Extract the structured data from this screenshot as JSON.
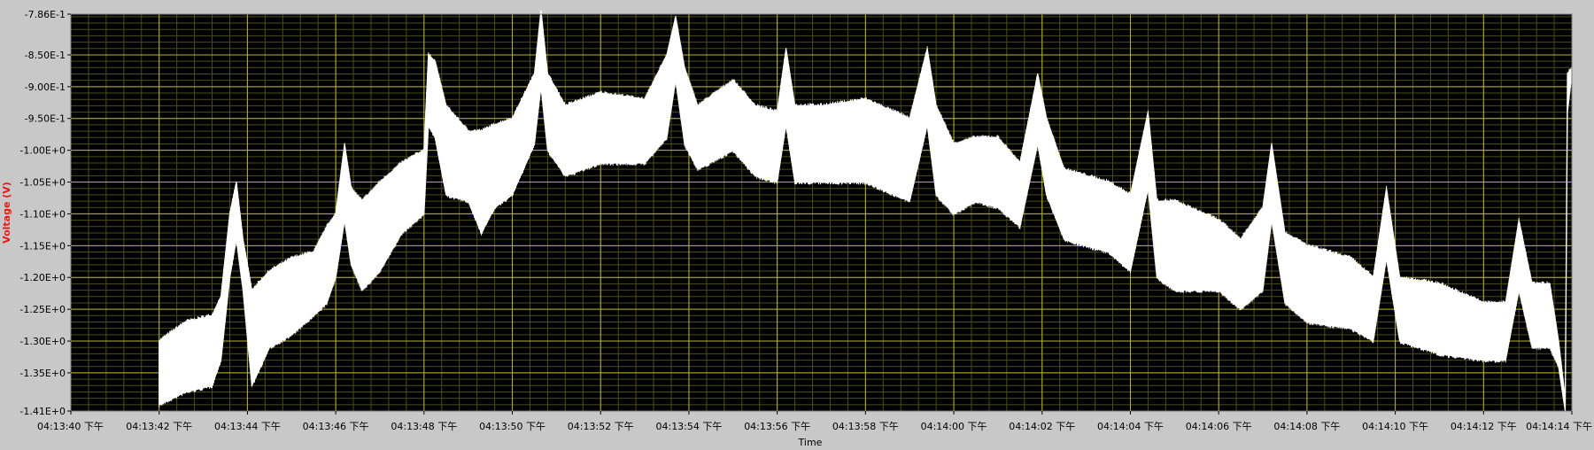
{
  "chart_data": {
    "type": "line",
    "title": "",
    "xlabel": "Time",
    "ylabel": "Voltage (V)",
    "x_range": [
      "04:13:40 下午",
      "04:14:14 下午"
    ],
    "ylim": [
      -1.41,
      -0.786
    ],
    "grid": true,
    "y_ticks": [
      {
        "value": -0.786,
        "label": "-7.86E-1"
      },
      {
        "value": -0.85,
        "label": "-8.50E-1"
      },
      {
        "value": -0.9,
        "label": "-9.00E-1"
      },
      {
        "value": -0.95,
        "label": "-9.50E-1"
      },
      {
        "value": -1.0,
        "label": "-1.00E+0"
      },
      {
        "value": -1.05,
        "label": "-1.05E+0"
      },
      {
        "value": -1.1,
        "label": "-1.10E+0"
      },
      {
        "value": -1.15,
        "label": "-1.15E+0"
      },
      {
        "value": -1.2,
        "label": "-1.20E+0"
      },
      {
        "value": -1.25,
        "label": "-1.25E+0"
      },
      {
        "value": -1.3,
        "label": "-1.30E+0"
      },
      {
        "value": -1.35,
        "label": "-1.35E+0"
      },
      {
        "value": -1.41,
        "label": "-1.41E+0"
      }
    ],
    "x_ticks": [
      {
        "value": 0,
        "label": "04:13:40 下午"
      },
      {
        "value": 2,
        "label": "04:13:42 下午"
      },
      {
        "value": 4,
        "label": "04:13:44 下午"
      },
      {
        "value": 6,
        "label": "04:13:46 下午"
      },
      {
        "value": 8,
        "label": "04:13:48 下午"
      },
      {
        "value": 10,
        "label": "04:13:50 下午"
      },
      {
        "value": 12,
        "label": "04:13:52 下午"
      },
      {
        "value": 14,
        "label": "04:13:54 下午"
      },
      {
        "value": 16,
        "label": "04:13:56 下午"
      },
      {
        "value": 18,
        "label": "04:13:58 下午"
      },
      {
        "value": 20,
        "label": "04:14:00 下午"
      },
      {
        "value": 22,
        "label": "04:14:02 下午"
      },
      {
        "value": 24,
        "label": "04:14:04 下午"
      },
      {
        "value": 26,
        "label": "04:14:06 下午"
      },
      {
        "value": 28,
        "label": "04:14:08 下午"
      },
      {
        "value": 30,
        "label": "04:14:10 下午"
      },
      {
        "value": 32,
        "label": "04:14:12 下午"
      },
      {
        "value": 34,
        "label": "04:14:14 下午"
      }
    ],
    "series": [
      {
        "upper_envelope": [
          [
            2.0,
            -1.3
          ],
          [
            2.6,
            -1.27
          ],
          [
            3.2,
            -1.26
          ],
          [
            3.4,
            -1.23
          ],
          [
            3.6,
            -1.1
          ],
          [
            3.75,
            -1.05
          ],
          [
            3.9,
            -1.14
          ],
          [
            4.1,
            -1.22
          ],
          [
            4.5,
            -1.19
          ],
          [
            5.0,
            -1.17
          ],
          [
            5.5,
            -1.16
          ],
          [
            5.8,
            -1.12
          ],
          [
            6.0,
            -1.1
          ],
          [
            6.2,
            -0.99
          ],
          [
            6.35,
            -1.06
          ],
          [
            6.6,
            -1.08
          ],
          [
            7.0,
            -1.05
          ],
          [
            7.5,
            -1.02
          ],
          [
            8.0,
            -1.0
          ],
          [
            8.1,
            -0.85
          ],
          [
            8.25,
            -0.86
          ],
          [
            8.5,
            -0.93
          ],
          [
            9.0,
            -0.97
          ],
          [
            9.3,
            -0.97
          ],
          [
            9.6,
            -0.96
          ],
          [
            10.0,
            -0.95
          ],
          [
            10.5,
            -0.88
          ],
          [
            10.65,
            -0.78
          ],
          [
            10.8,
            -0.88
          ],
          [
            11.2,
            -0.93
          ],
          [
            12.0,
            -0.91
          ],
          [
            13.0,
            -0.92
          ],
          [
            13.5,
            -0.85
          ],
          [
            13.7,
            -0.79
          ],
          [
            13.9,
            -0.87
          ],
          [
            14.2,
            -0.93
          ],
          [
            15.0,
            -0.89
          ],
          [
            15.5,
            -0.93
          ],
          [
            16.0,
            -0.94
          ],
          [
            16.2,
            -0.84
          ],
          [
            16.4,
            -0.93
          ],
          [
            17.0,
            -0.93
          ],
          [
            18.0,
            -0.92
          ],
          [
            19.0,
            -0.95
          ],
          [
            19.4,
            -0.84
          ],
          [
            19.6,
            -0.93
          ],
          [
            20.0,
            -0.99
          ],
          [
            20.5,
            -0.98
          ],
          [
            21.0,
            -0.98
          ],
          [
            21.5,
            -1.02
          ],
          [
            21.9,
            -0.88
          ],
          [
            22.1,
            -0.95
          ],
          [
            22.5,
            -1.03
          ],
          [
            23.5,
            -1.05
          ],
          [
            24.0,
            -1.07
          ],
          [
            24.4,
            -0.94
          ],
          [
            24.6,
            -1.08
          ],
          [
            25.0,
            -1.08
          ],
          [
            26.0,
            -1.11
          ],
          [
            26.5,
            -1.14
          ],
          [
            27.0,
            -1.09
          ],
          [
            27.2,
            -0.99
          ],
          [
            27.5,
            -1.13
          ],
          [
            28.0,
            -1.15
          ],
          [
            29.0,
            -1.17
          ],
          [
            29.5,
            -1.2
          ],
          [
            29.8,
            -1.06
          ],
          [
            30.1,
            -1.2
          ],
          [
            31.0,
            -1.21
          ],
          [
            32.0,
            -1.24
          ],
          [
            32.5,
            -1.24
          ],
          [
            32.8,
            -1.11
          ],
          [
            33.1,
            -1.21
          ],
          [
            33.5,
            -1.21
          ],
          [
            33.7,
            -1.3
          ],
          [
            33.85,
            -1.39
          ],
          [
            33.9,
            -0.88
          ],
          [
            34.0,
            -0.87
          ]
        ],
        "lower_envelope": [
          [
            2.0,
            -1.4
          ],
          [
            2.6,
            -1.38
          ],
          [
            3.2,
            -1.37
          ],
          [
            3.4,
            -1.33
          ],
          [
            3.6,
            -1.2
          ],
          [
            3.75,
            -1.14
          ],
          [
            3.9,
            -1.22
          ],
          [
            4.1,
            -1.37
          ],
          [
            4.5,
            -1.31
          ],
          [
            5.0,
            -1.29
          ],
          [
            5.5,
            -1.26
          ],
          [
            5.8,
            -1.24
          ],
          [
            6.0,
            -1.2
          ],
          [
            6.2,
            -1.11
          ],
          [
            6.35,
            -1.18
          ],
          [
            6.6,
            -1.22
          ],
          [
            7.0,
            -1.19
          ],
          [
            7.5,
            -1.13
          ],
          [
            8.0,
            -1.1
          ],
          [
            8.1,
            -0.96
          ],
          [
            8.25,
            -0.98
          ],
          [
            8.5,
            -1.07
          ],
          [
            9.0,
            -1.08
          ],
          [
            9.3,
            -1.13
          ],
          [
            9.6,
            -1.09
          ],
          [
            10.0,
            -1.07
          ],
          [
            10.5,
            -0.99
          ],
          [
            10.65,
            -0.9
          ],
          [
            10.8,
            -1.0
          ],
          [
            11.2,
            -1.04
          ],
          [
            12.0,
            -1.02
          ],
          [
            13.0,
            -1.02
          ],
          [
            13.5,
            -0.98
          ],
          [
            13.7,
            -0.89
          ],
          [
            13.9,
            -0.99
          ],
          [
            14.2,
            -1.03
          ],
          [
            15.0,
            -1.0
          ],
          [
            15.5,
            -1.04
          ],
          [
            16.0,
            -1.05
          ],
          [
            16.2,
            -0.96
          ],
          [
            16.4,
            -1.05
          ],
          [
            17.0,
            -1.05
          ],
          [
            18.0,
            -1.05
          ],
          [
            19.0,
            -1.08
          ],
          [
            19.4,
            -0.96
          ],
          [
            19.6,
            -1.07
          ],
          [
            20.0,
            -1.1
          ],
          [
            20.5,
            -1.08
          ],
          [
            21.0,
            -1.09
          ],
          [
            21.5,
            -1.12
          ],
          [
            21.9,
            -0.99
          ],
          [
            22.1,
            -1.07
          ],
          [
            22.5,
            -1.14
          ],
          [
            23.5,
            -1.16
          ],
          [
            24.0,
            -1.19
          ],
          [
            24.4,
            -1.06
          ],
          [
            24.6,
            -1.2
          ],
          [
            25.0,
            -1.22
          ],
          [
            26.0,
            -1.22
          ],
          [
            26.5,
            -1.25
          ],
          [
            27.0,
            -1.22
          ],
          [
            27.2,
            -1.11
          ],
          [
            27.5,
            -1.24
          ],
          [
            28.0,
            -1.27
          ],
          [
            29.0,
            -1.28
          ],
          [
            29.5,
            -1.3
          ],
          [
            29.8,
            -1.17
          ],
          [
            30.1,
            -1.3
          ],
          [
            31.0,
            -1.32
          ],
          [
            32.0,
            -1.33
          ],
          [
            32.5,
            -1.33
          ],
          [
            32.8,
            -1.22
          ],
          [
            33.1,
            -1.31
          ],
          [
            33.5,
            -1.31
          ],
          [
            33.7,
            -1.34
          ],
          [
            33.85,
            -1.41
          ],
          [
            33.9,
            -0.94
          ],
          [
            34.0,
            -0.88
          ]
        ]
      }
    ]
  },
  "colors": {
    "plot_background": "#000000",
    "major_grid": "#b7b52e",
    "minor_grid": "#4d4d1a",
    "trace": "#ffffff",
    "ylabel_color": "#e81818",
    "frame_background": "#c8c8c8",
    "tick_text": "#000000"
  }
}
